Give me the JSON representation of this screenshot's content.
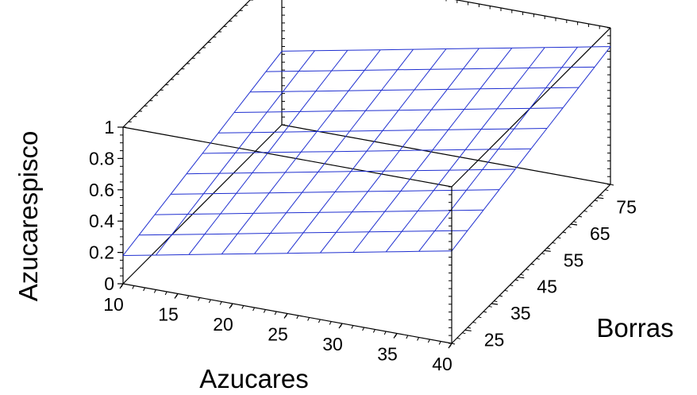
{
  "chart_data": {
    "type": "surface",
    "xlabel": "Azucares",
    "ylabel": "Borras",
    "zlabel": "Azucarespisco",
    "xlim": [
      10,
      40
    ],
    "ylim": [
      20,
      80
    ],
    "zlim": [
      0,
      1
    ],
    "x_ticks": [
      "10",
      "15",
      "20",
      "25",
      "30",
      "35",
      "40"
    ],
    "y_ticks": [
      "25",
      "35",
      "45",
      "55",
      "65",
      "75"
    ],
    "z_ticks": [
      "0",
      "0.2",
      "0.4",
      "0.6",
      "0.8",
      "1"
    ],
    "surface": {
      "grid_divisions": 10,
      "z_corners": {
        "x10_y20": 0.18,
        "x40_y20": 0.59,
        "x10_y80": 0.47,
        "x40_y80": 0.88
      }
    },
    "colors": {
      "surface": "#1f2fd0",
      "box": "#000000"
    }
  }
}
